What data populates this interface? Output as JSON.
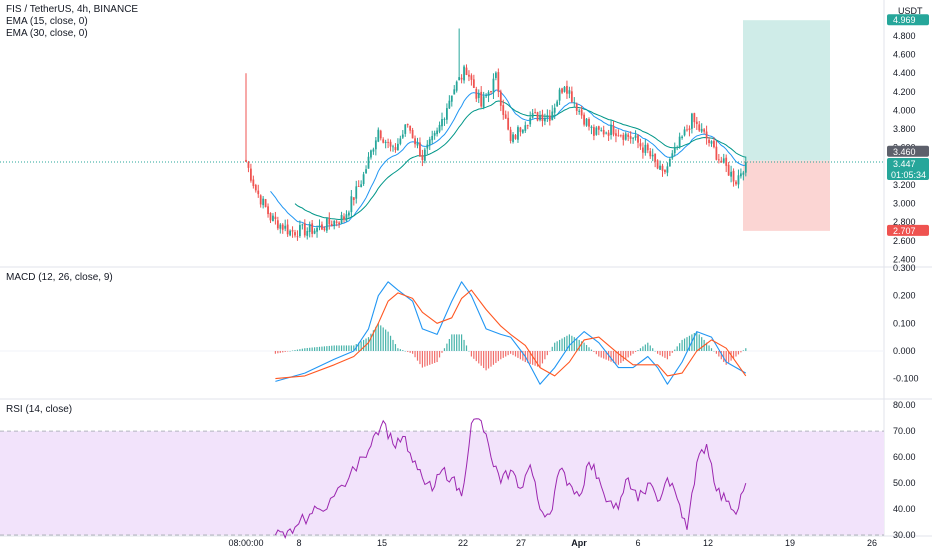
{
  "legend": {
    "symbol": "FIS / TetherUS, 4h, BINANCE",
    "ema15": "EMA (15, close, 0)",
    "ema30": "EMA (30, close, 0)",
    "macd": "MACD (12, 26, close, 9)",
    "rsi": "RSI (14, close)"
  },
  "quote_currency": "USDT",
  "price_tags": {
    "target": "4.969",
    "entry": "3.460",
    "last": "3.447",
    "countdown": "01:05:34",
    "stop": "2.707"
  },
  "colors": {
    "up": "#26a69a",
    "down": "#ef5350",
    "ema15": "#2196f3",
    "ema30": "#009688",
    "macd_line": "#2196f3",
    "signal_line": "#ff5722",
    "rsi_line": "#9c27b0",
    "rsi_band": "#f2e3fb",
    "target_zone": "#cfece8",
    "stop_zone": "#fbd5d3"
  },
  "chart_data": [
    {
      "type": "candlestick",
      "title": "FIS / TetherUS, 4h, BINANCE",
      "y_ticks": [
        "4.800",
        "4.600",
        "4.400",
        "4.200",
        "4.000",
        "3.800",
        "3.600",
        "3.200",
        "3.000",
        "2.800",
        "2.600",
        "2.400"
      ],
      "ylim": [
        2.33,
        5.1
      ],
      "x_ticks": [
        "08:00:00",
        "8",
        "15",
        "22",
        "27",
        "Apr",
        "6",
        "12",
        "19",
        "26"
      ],
      "keypoints": [
        {
          "x": 0,
          "close": 3.45
        },
        {
          "x": 4,
          "close": 3.15
        },
        {
          "x": 10,
          "close": 2.85
        },
        {
          "x": 18,
          "close": 2.7
        },
        {
          "x": 28,
          "close": 2.72
        },
        {
          "x": 40,
          "close": 2.85
        },
        {
          "x": 48,
          "close": 3.3
        },
        {
          "x": 54,
          "close": 3.8
        },
        {
          "x": 60,
          "close": 3.55
        },
        {
          "x": 66,
          "close": 3.85
        },
        {
          "x": 72,
          "close": 3.5
        },
        {
          "x": 78,
          "close": 3.75
        },
        {
          "x": 84,
          "close": 4.2
        },
        {
          "x": 90,
          "close": 4.45
        },
        {
          "x": 96,
          "close": 4.05
        },
        {
          "x": 102,
          "close": 4.35
        },
        {
          "x": 108,
          "close": 3.65
        },
        {
          "x": 114,
          "close": 3.9
        },
        {
          "x": 120,
          "close": 3.95
        },
        {
          "x": 124,
          "close": 3.95
        },
        {
          "x": 130,
          "close": 4.3
        },
        {
          "x": 136,
          "close": 4.0
        },
        {
          "x": 142,
          "close": 3.75
        },
        {
          "x": 150,
          "close": 3.8
        },
        {
          "x": 158,
          "close": 3.7
        },
        {
          "x": 164,
          "close": 3.55
        },
        {
          "x": 170,
          "close": 3.3
        },
        {
          "x": 176,
          "close": 3.6
        },
        {
          "x": 182,
          "close": 3.9
        },
        {
          "x": 188,
          "close": 3.7
        },
        {
          "x": 194,
          "close": 3.45
        },
        {
          "x": 200,
          "close": 3.25
        },
        {
          "x": 204,
          "close": 3.45
        }
      ],
      "spikes": [
        {
          "x": 0,
          "high": 4.4
        },
        {
          "x": 87,
          "high": 4.88
        }
      ],
      "ema15_offset": 0.0,
      "long_position": {
        "entry": 3.46,
        "target": 4.969,
        "stop": 2.707
      }
    },
    {
      "type": "line",
      "title": "MACD (12, 26, close, 9)",
      "y_ticks": [
        "0.300",
        "0.200",
        "0.100",
        "0.000",
        "-0.100"
      ],
      "ylim": [
        -0.17,
        0.3
      ],
      "x": [
        12,
        24,
        36,
        44,
        50,
        54,
        58,
        62,
        68,
        72,
        78,
        84,
        88,
        92,
        98,
        104,
        108,
        114,
        120,
        126,
        132,
        138,
        144,
        152,
        158,
        164,
        168,
        172,
        178,
        184,
        190,
        196,
        204
      ],
      "series": [
        {
          "values": [
            -0.11,
            -0.08,
            -0.03,
            0.0,
            0.08,
            0.2,
            0.25,
            0.22,
            0.18,
            0.08,
            0.06,
            0.18,
            0.25,
            0.2,
            0.08,
            0.06,
            0.05,
            -0.02,
            -0.12,
            -0.06,
            0.02,
            0.07,
            0.03,
            -0.06,
            -0.06,
            -0.02,
            -0.06,
            -0.12,
            -0.04,
            0.07,
            0.05,
            -0.04,
            -0.08
          ]
        },
        {
          "values": [
            -0.1,
            -0.09,
            -0.05,
            -0.02,
            0.03,
            0.1,
            0.18,
            0.21,
            0.19,
            0.14,
            0.1,
            0.12,
            0.19,
            0.22,
            0.15,
            0.09,
            0.06,
            0.02,
            -0.06,
            -0.09,
            -0.04,
            0.04,
            0.05,
            -0.01,
            -0.05,
            -0.05,
            -0.05,
            -0.09,
            -0.08,
            0.0,
            0.04,
            0.01,
            -0.09
          ]
        }
      ]
    },
    {
      "type": "line",
      "title": "RSI (14, close)",
      "y_ticks": [
        "80.00",
        "70.00",
        "60.00",
        "50.00",
        "40.00",
        "30.00"
      ],
      "ylim": [
        25,
        82
      ],
      "band": [
        30,
        70
      ],
      "x": [
        12,
        16,
        20,
        26,
        30,
        36,
        42,
        48,
        52,
        56,
        60,
        64,
        68,
        72,
        76,
        80,
        84,
        88,
        92,
        96,
        100,
        104,
        108,
        112,
        116,
        120,
        124,
        128,
        132,
        136,
        140,
        144,
        148,
        152,
        156,
        160,
        164,
        168,
        172,
        176,
        180,
        184,
        188,
        192,
        196,
        200,
        204
      ],
      "series": [
        {
          "values": [
            30,
            29,
            33,
            38,
            40,
            45,
            52,
            60,
            68,
            74,
            65,
            68,
            58,
            52,
            47,
            55,
            52,
            45,
            73,
            74,
            60,
            50,
            55,
            48,
            57,
            40,
            38,
            55,
            50,
            45,
            58,
            52,
            43,
            40,
            52,
            43,
            50,
            43,
            52,
            44,
            32,
            58,
            65,
            47,
            43,
            38,
            50
          ]
        }
      ]
    }
  ]
}
